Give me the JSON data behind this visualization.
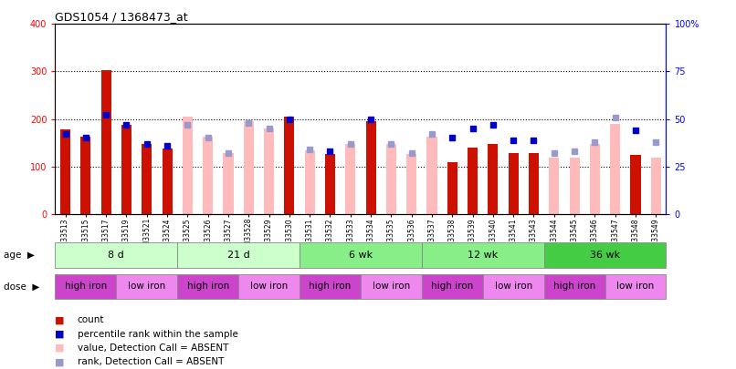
{
  "title": "GDS1054 / 1368473_at",
  "samples": [
    "GSM33513",
    "GSM33515",
    "GSM33517",
    "GSM33519",
    "GSM33521",
    "GSM33524",
    "GSM33525",
    "GSM33526",
    "GSM33527",
    "GSM33528",
    "GSM33529",
    "GSM33530",
    "GSM33531",
    "GSM33532",
    "GSM33533",
    "GSM33534",
    "GSM33535",
    "GSM33536",
    "GSM33537",
    "GSM33538",
    "GSM33539",
    "GSM33540",
    "GSM33541",
    "GSM33543",
    "GSM33544",
    "GSM33545",
    "GSM33546",
    "GSM33547",
    "GSM33548",
    "GSM33549"
  ],
  "count_present": [
    178,
    162,
    302,
    188,
    148,
    138,
    null,
    null,
    null,
    null,
    null,
    205,
    null,
    127,
    null,
    195,
    null,
    null,
    null,
    110,
    140,
    148,
    128,
    128,
    null,
    null,
    null,
    null,
    125,
    null
  ],
  "count_absent": [
    null,
    null,
    null,
    null,
    null,
    null,
    205,
    163,
    128,
    195,
    180,
    null,
    135,
    null,
    148,
    null,
    148,
    126,
    163,
    null,
    null,
    null,
    null,
    null,
    118,
    118,
    148,
    190,
    null,
    118
  ],
  "rank_present": [
    42,
    40,
    52,
    47,
    37,
    36,
    null,
    null,
    null,
    null,
    null,
    50,
    null,
    33,
    null,
    50,
    null,
    null,
    null,
    40,
    45,
    47,
    39,
    39,
    null,
    null,
    null,
    null,
    44,
    null
  ],
  "rank_absent": [
    null,
    null,
    null,
    null,
    null,
    null,
    47,
    40,
    32,
    48,
    45,
    null,
    34,
    null,
    37,
    null,
    37,
    32,
    42,
    null,
    null,
    null,
    null,
    null,
    32,
    33,
    38,
    51,
    null,
    38
  ],
  "ylim_left": [
    0,
    400
  ],
  "ylim_right": [
    0,
    100
  ],
  "yticks_left": [
    0,
    100,
    200,
    300,
    400
  ],
  "yticks_right": [
    0,
    25,
    50,
    75,
    100
  ],
  "bar_color_present": "#cc1100",
  "bar_color_absent": "#ffbbbb",
  "rank_color_present": "#0000cc",
  "rank_color_absent": "#9999cc",
  "bar_width": 0.5,
  "age_groups": [
    {
      "label": "8 d",
      "start": 0,
      "end": 6,
      "color": "#ccffcc"
    },
    {
      "label": "21 d",
      "start": 6,
      "end": 12,
      "color": "#ccffcc"
    },
    {
      "label": "6 wk",
      "start": 12,
      "end": 18,
      "color": "#88ee88"
    },
    {
      "label": "12 wk",
      "start": 18,
      "end": 24,
      "color": "#88ee88"
    },
    {
      "label": "36 wk",
      "start": 24,
      "end": 30,
      "color": "#44cc44"
    }
  ],
  "dose_groups": [
    {
      "label": "high iron",
      "start": 0,
      "end": 3,
      "color": "#cc44cc"
    },
    {
      "label": "low iron",
      "start": 3,
      "end": 6,
      "color": "#ee88ee"
    },
    {
      "label": "high iron",
      "start": 6,
      "end": 9,
      "color": "#cc44cc"
    },
    {
      "label": "low iron",
      "start": 9,
      "end": 12,
      "color": "#ee88ee"
    },
    {
      "label": "high iron",
      "start": 12,
      "end": 15,
      "color": "#cc44cc"
    },
    {
      "label": "low iron",
      "start": 15,
      "end": 18,
      "color": "#ee88ee"
    },
    {
      "label": "high iron",
      "start": 18,
      "end": 21,
      "color": "#cc44cc"
    },
    {
      "label": "low iron",
      "start": 21,
      "end": 24,
      "color": "#ee88ee"
    },
    {
      "label": "high iron",
      "start": 24,
      "end": 27,
      "color": "#cc44cc"
    },
    {
      "label": "low iron",
      "start": 27,
      "end": 30,
      "color": "#ee88ee"
    }
  ],
  "background_color": "#ffffff"
}
